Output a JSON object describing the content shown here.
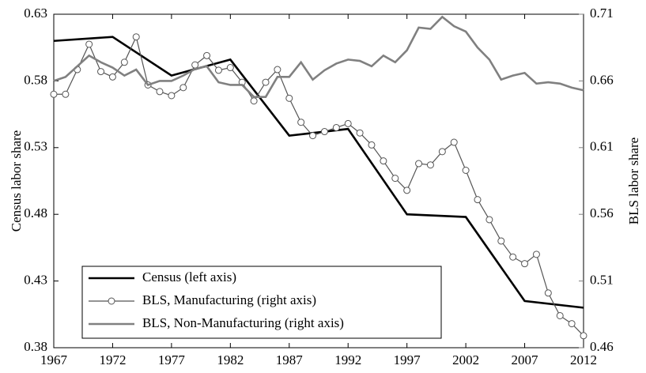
{
  "chart_data": {
    "type": "line",
    "ylabel": "Census labor share",
    "y2label": "BLS labor share",
    "xlim": [
      1967,
      2012
    ],
    "xticks": [
      1967,
      1972,
      1977,
      1982,
      1987,
      1992,
      1997,
      2002,
      2007,
      2012
    ],
    "ylim": [
      0.38,
      0.63
    ],
    "yticks": [
      0.38,
      0.43,
      0.48,
      0.53,
      0.58,
      0.63
    ],
    "y2lim": [
      0.46,
      0.71
    ],
    "y2ticks": [
      0.46,
      0.51,
      0.56,
      0.61,
      0.66,
      0.71
    ],
    "y2color": "#808080",
    "legend": "lower left",
    "series": [
      {
        "name": "Census (left axis)",
        "color": "#000000",
        "x": [
          1967,
          1972,
          1977,
          1982,
          1987,
          1992,
          1997,
          2002,
          2007,
          2012
        ],
        "values": [
          0.61,
          0.613,
          0.584,
          0.596,
          0.539,
          0.544,
          0.48,
          0.478,
          0.415,
          0.41
        ]
      },
      {
        "name": "BLS, Manufacturing (right axis)",
        "color": "#555555",
        "axis": "y2",
        "marker": "circle",
        "x": [
          1967,
          1968,
          1969,
          1970,
          1971,
          1972,
          1973,
          1974,
          1975,
          1976,
          1977,
          1978,
          1979,
          1980,
          1981,
          1982,
          1983,
          1984,
          1985,
          1986,
          1987,
          1988,
          1989,
          1990,
          1991,
          1992,
          1993,
          1994,
          1995,
          1996,
          1997,
          1998,
          1999,
          2000,
          2001,
          2002,
          2003,
          2004,
          2005,
          2006,
          2007,
          2008,
          2009,
          2010,
          2011,
          2012
        ],
        "values": [
          0.65,
          0.65,
          0.6685,
          0.6875,
          0.667,
          0.663,
          0.674,
          0.693,
          0.657,
          0.652,
          0.649,
          0.655,
          0.672,
          0.679,
          0.668,
          0.67,
          0.659,
          0.645,
          0.659,
          0.6685,
          0.647,
          0.629,
          0.619,
          0.622,
          0.625,
          0.628,
          0.621,
          0.612,
          0.6,
          0.587,
          0.578,
          0.598,
          0.597,
          0.607,
          0.614,
          0.593,
          0.571,
          0.556,
          0.54,
          0.528,
          0.523,
          0.53,
          0.501,
          0.484,
          0.478,
          0.469
        ]
      },
      {
        "name": "BLS, Non-Manufacturing (right axis)",
        "color": "#808080",
        "axis": "y2",
        "x": [
          1967,
          1968,
          1969,
          1970,
          1971,
          1972,
          1973,
          1974,
          1975,
          1976,
          1977,
          1978,
          1979,
          1980,
          1981,
          1982,
          1983,
          1984,
          1985,
          1986,
          1987,
          1988,
          1989,
          1990,
          1991,
          1992,
          1993,
          1994,
          1995,
          1996,
          1997,
          1998,
          1999,
          2000,
          2001,
          2002,
          2003,
          2004,
          2005,
          2006,
          2007,
          2008,
          2009,
          2010,
          2011,
          2012
        ],
        "values": [
          0.66,
          0.663,
          0.671,
          0.679,
          0.674,
          0.67,
          0.664,
          0.6685,
          0.657,
          0.66,
          0.66,
          0.664,
          0.669,
          0.671,
          0.659,
          0.657,
          0.657,
          0.648,
          0.648,
          0.663,
          0.663,
          0.674,
          0.661,
          0.668,
          0.673,
          0.676,
          0.675,
          0.671,
          0.679,
          0.674,
          0.683,
          0.7,
          0.699,
          0.708,
          0.701,
          0.697,
          0.685,
          0.676,
          0.661,
          0.664,
          0.666,
          0.658,
          0.659,
          0.658,
          0.655,
          0.653
        ]
      }
    ]
  }
}
